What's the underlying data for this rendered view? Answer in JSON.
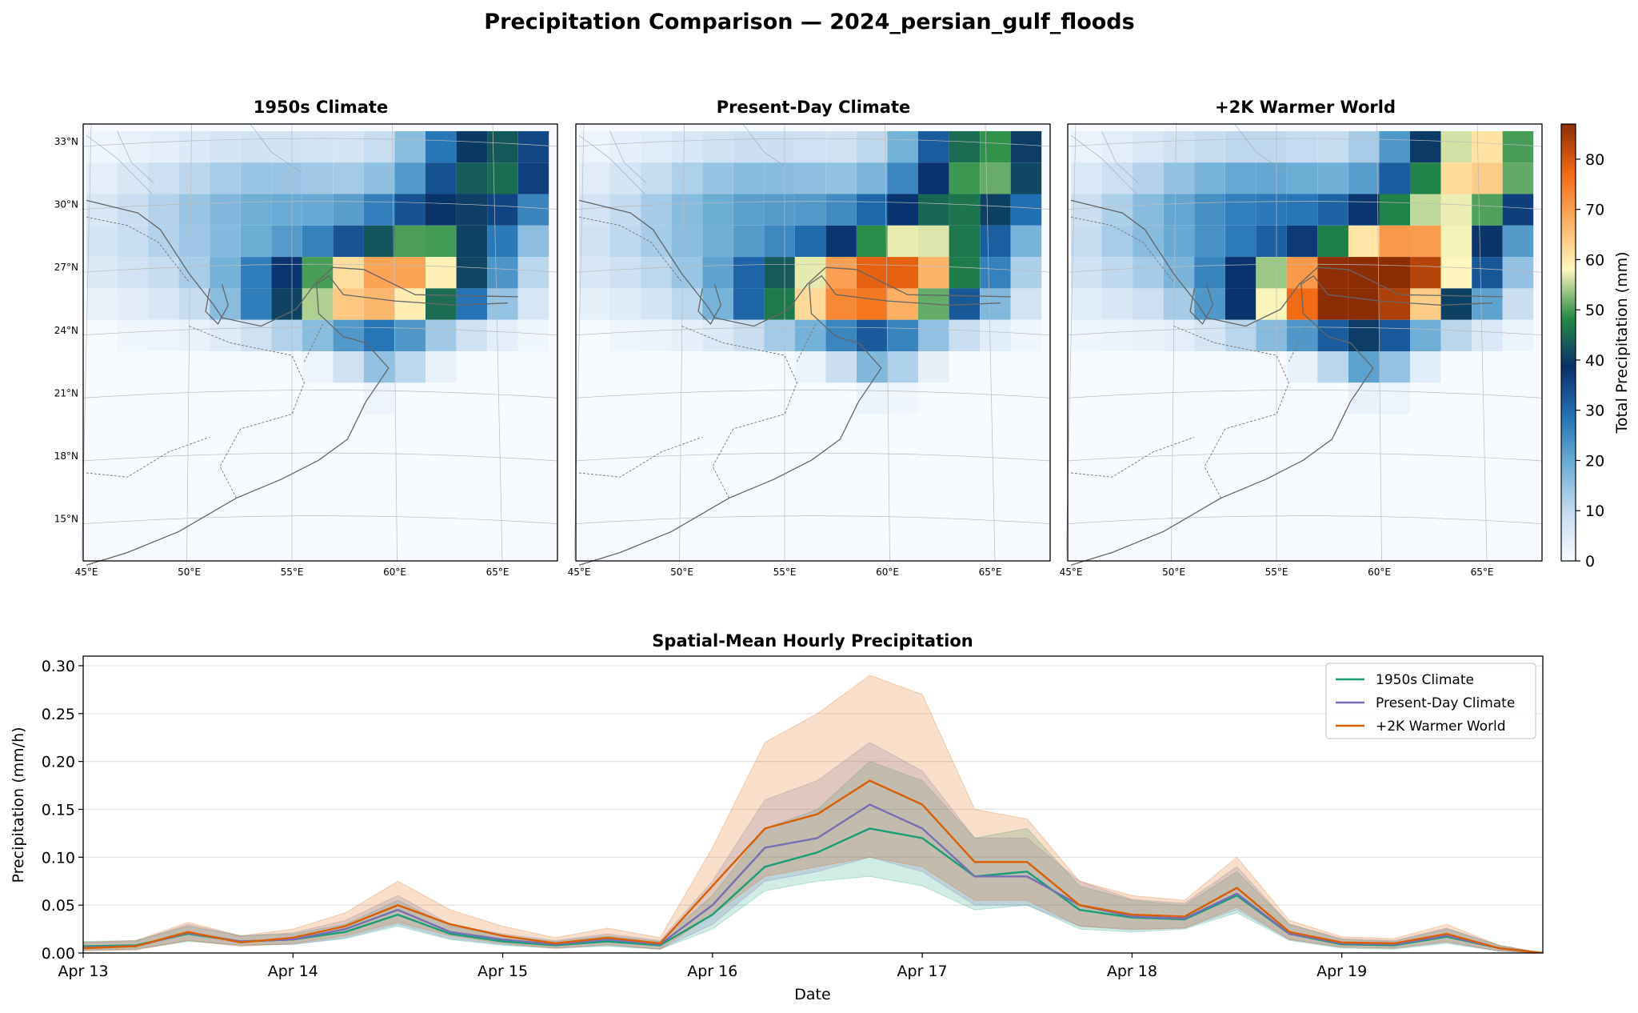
{
  "figure": {
    "title": "Precipitation Comparison — 2024_persian_gulf_floods"
  },
  "maps": {
    "panels": [
      {
        "title": "1950s Climate"
      },
      {
        "title": "Present-Day Climate"
      },
      {
        "title": "+2K Warmer World"
      }
    ],
    "lat_labels": [
      "33°N",
      "30°N",
      "27°N",
      "24°N",
      "21°N",
      "18°N",
      "15°N"
    ],
    "lon_labels": [
      "45°E",
      "50°E",
      "55°E",
      "60°E",
      "65°E"
    ],
    "colorbar": {
      "label": "Total Precipitation (mm)",
      "ticks": [
        "0",
        "10",
        "20",
        "30",
        "40",
        "50",
        "60",
        "70",
        "80"
      ],
      "range": [
        0,
        87
      ],
      "colors": [
        "#f7fbff",
        "#c6dbef",
        "#6baed6",
        "#2171b5",
        "#08306b",
        "#238b45",
        "#fff7bc",
        "#fdae61",
        "#f16913",
        "#8c2d04"
      ]
    }
  },
  "chart_data": {
    "type": "line",
    "title": "Spatial-Mean Hourly Precipitation",
    "xlabel": "Date",
    "ylabel": "Precipitation (mm/h)",
    "ylim": [
      0,
      0.31
    ],
    "xlim": [
      "2024-04-13",
      "2024-04-19T23:00"
    ],
    "x_ticks": [
      "Apr 13",
      "Apr 14",
      "Apr 15",
      "Apr 16",
      "Apr 17",
      "Apr 18",
      "Apr 19"
    ],
    "y_ticks": [
      "0.00",
      "0.05",
      "0.10",
      "0.15",
      "0.20",
      "0.25",
      "0.30"
    ],
    "grid": "horizontal",
    "legend_position": "upper right",
    "x": [
      "2024-04-13T00:00",
      "2024-04-13T06:00",
      "2024-04-13T12:00",
      "2024-04-13T18:00",
      "2024-04-14T00:00",
      "2024-04-14T06:00",
      "2024-04-14T12:00",
      "2024-04-14T18:00",
      "2024-04-15T00:00",
      "2024-04-15T06:00",
      "2024-04-15T12:00",
      "2024-04-15T18:00",
      "2024-04-16T00:00",
      "2024-04-16T06:00",
      "2024-04-16T12:00",
      "2024-04-16T18:00",
      "2024-04-17T00:00",
      "2024-04-17T06:00",
      "2024-04-17T12:00",
      "2024-04-17T18:00",
      "2024-04-18T00:00",
      "2024-04-18T06:00",
      "2024-04-18T12:00",
      "2024-04-18T18:00",
      "2024-04-19T00:00",
      "2024-04-19T06:00",
      "2024-04-19T12:00",
      "2024-04-19T18:00",
      "2024-04-19T23:00"
    ],
    "series": [
      {
        "name": "1950s Climate",
        "color": "#1b9e77",
        "values": [
          0.007,
          0.008,
          0.02,
          0.012,
          0.014,
          0.022,
          0.04,
          0.02,
          0.012,
          0.008,
          0.012,
          0.008,
          0.04,
          0.09,
          0.105,
          0.13,
          0.12,
          0.08,
          0.085,
          0.045,
          0.037,
          0.035,
          0.06,
          0.02,
          0.009,
          0.008,
          0.017,
          0.005,
          0.0
        ],
        "lower": [
          0.003,
          0.004,
          0.012,
          0.008,
          0.009,
          0.015,
          0.028,
          0.014,
          0.008,
          0.005,
          0.007,
          0.004,
          0.025,
          0.065,
          0.075,
          0.08,
          0.07,
          0.045,
          0.05,
          0.025,
          0.022,
          0.025,
          0.042,
          0.013,
          0.005,
          0.004,
          0.01,
          0.002,
          0.0
        ],
        "upper": [
          0.012,
          0.013,
          0.028,
          0.018,
          0.02,
          0.03,
          0.055,
          0.028,
          0.018,
          0.012,
          0.018,
          0.012,
          0.06,
          0.13,
          0.15,
          0.2,
          0.18,
          0.12,
          0.13,
          0.07,
          0.055,
          0.05,
          0.085,
          0.03,
          0.014,
          0.012,
          0.025,
          0.008,
          0.0
        ]
      },
      {
        "name": "Present-Day Climate",
        "color": "#7570b3",
        "values": [
          0.006,
          0.007,
          0.021,
          0.012,
          0.014,
          0.025,
          0.045,
          0.022,
          0.014,
          0.009,
          0.014,
          0.009,
          0.05,
          0.11,
          0.12,
          0.155,
          0.13,
          0.08,
          0.08,
          0.05,
          0.038,
          0.036,
          0.062,
          0.02,
          0.01,
          0.009,
          0.018,
          0.005,
          0.0
        ],
        "lower": [
          0.003,
          0.004,
          0.013,
          0.008,
          0.009,
          0.016,
          0.03,
          0.015,
          0.009,
          0.005,
          0.008,
          0.004,
          0.03,
          0.075,
          0.085,
          0.1,
          0.085,
          0.05,
          0.05,
          0.028,
          0.024,
          0.026,
          0.045,
          0.014,
          0.006,
          0.005,
          0.011,
          0.002,
          0.0
        ],
        "upper": [
          0.011,
          0.012,
          0.03,
          0.018,
          0.021,
          0.034,
          0.06,
          0.03,
          0.02,
          0.013,
          0.02,
          0.013,
          0.075,
          0.16,
          0.18,
          0.22,
          0.19,
          0.12,
          0.12,
          0.075,
          0.056,
          0.052,
          0.09,
          0.03,
          0.015,
          0.013,
          0.026,
          0.008,
          0.0
        ]
      },
      {
        "name": "+2K Warmer World",
        "color": "#d95f02",
        "values": [
          0.005,
          0.007,
          0.022,
          0.011,
          0.016,
          0.028,
          0.05,
          0.03,
          0.018,
          0.01,
          0.016,
          0.01,
          0.07,
          0.13,
          0.145,
          0.18,
          0.155,
          0.095,
          0.095,
          0.05,
          0.04,
          0.038,
          0.068,
          0.022,
          0.011,
          0.01,
          0.02,
          0.005,
          0.0
        ],
        "lower": [
          0.002,
          0.003,
          0.013,
          0.007,
          0.01,
          0.018,
          0.032,
          0.018,
          0.01,
          0.005,
          0.009,
          0.004,
          0.04,
          0.08,
          0.09,
          0.1,
          0.09,
          0.055,
          0.055,
          0.028,
          0.025,
          0.026,
          0.048,
          0.014,
          0.006,
          0.005,
          0.012,
          0.002,
          0.0
        ],
        "upper": [
          0.011,
          0.013,
          0.032,
          0.018,
          0.025,
          0.042,
          0.075,
          0.045,
          0.028,
          0.016,
          0.026,
          0.016,
          0.11,
          0.22,
          0.25,
          0.29,
          0.27,
          0.15,
          0.14,
          0.075,
          0.06,
          0.055,
          0.1,
          0.034,
          0.017,
          0.015,
          0.03,
          0.008,
          0.0
        ]
      }
    ]
  }
}
